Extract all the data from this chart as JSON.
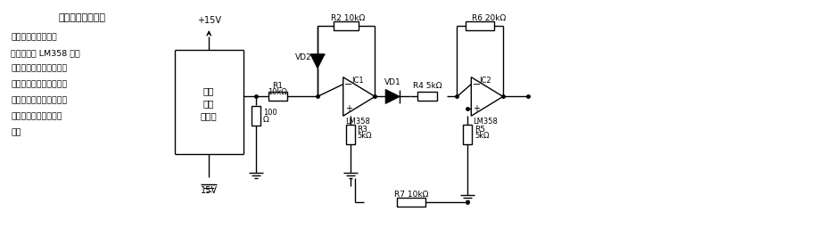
{
  "title": "交流电流检测电路",
  "desc_lines": [
    "电路由霍尔效应传感",
    "器、放大器 LM358 和外",
    "围元器件组成。霍尔元件",
    "检测出的交流电流信号经",
    "精密整流电路整流、放大",
    "后输出的是脉动直流信",
    "号。"
  ],
  "bg_color": "#ffffff",
  "lc": "#000000"
}
